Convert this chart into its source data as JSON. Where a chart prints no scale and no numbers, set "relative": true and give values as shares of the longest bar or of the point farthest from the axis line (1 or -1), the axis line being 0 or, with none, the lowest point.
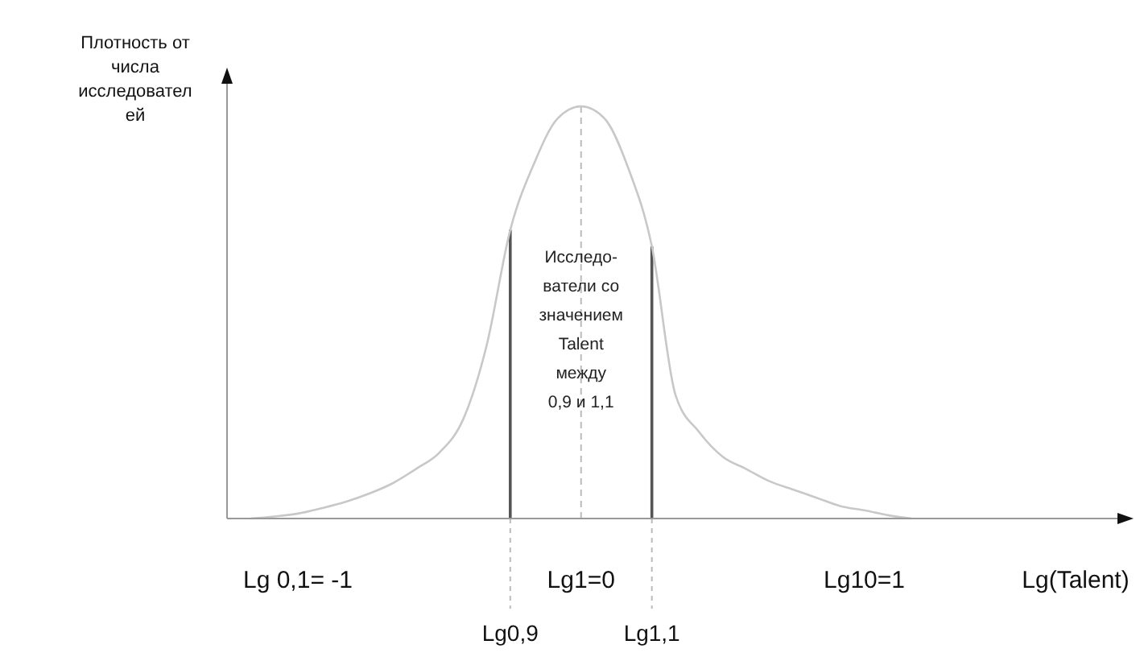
{
  "chart_data": {
    "type": "line",
    "relative": true,
    "ylabel": "Плотность от\nчисла\nисследовател\nей",
    "xlabel": "Lg(Talent)",
    "categories": [
      null,
      null,
      null,
      "Lg 0,1= -1",
      null,
      null,
      null,
      null,
      null,
      null,
      null,
      null,
      "Lg0,9",
      null,
      null,
      "Lg1=0",
      null,
      null,
      "Lg1,1",
      null,
      null,
      null,
      null,
      null,
      null,
      null,
      null,
      "Lg10=1",
      null,
      null,
      null,
      null,
      null,
      null,
      null,
      null,
      null,
      null,
      null
    ],
    "tick_labels": "x",
    "marker": "none",
    "line_style": "solid",
    "series": [
      {
        "color": "#c8c8c8",
        "values": [
          null,
          0,
          0.005,
          0.012,
          0.025,
          0.04,
          0.06,
          0.085,
          0.12,
          0.16,
          0.24,
          0.42,
          0.7,
          0.86,
          0.97,
          1,
          0.97,
          0.85,
          0.66,
          0.3,
          0.21,
          0.15,
          0.12,
          0.09,
          0.07,
          0.05,
          0.03,
          0.02,
          0.008,
          0,
          null,
          null,
          null,
          null,
          null,
          null,
          null,
          null,
          null
        ]
      }
    ],
    "ref_lines": [
      {
        "axis": "x",
        "value": "Lg1=0",
        "line_style": "dashed",
        "color": "#bbbbbb"
      },
      {
        "axis": "x",
        "value": "Lg0,9",
        "line_style": "solid",
        "color": "#555555"
      },
      {
        "axis": "x",
        "value": "Lg1,1",
        "line_style": "solid",
        "color": "#555555"
      }
    ],
    "annotations": [
      "Исследо-\nватели со\nзначением\nTalent\nмежду\n0,9 и 1,1"
    ]
  }
}
